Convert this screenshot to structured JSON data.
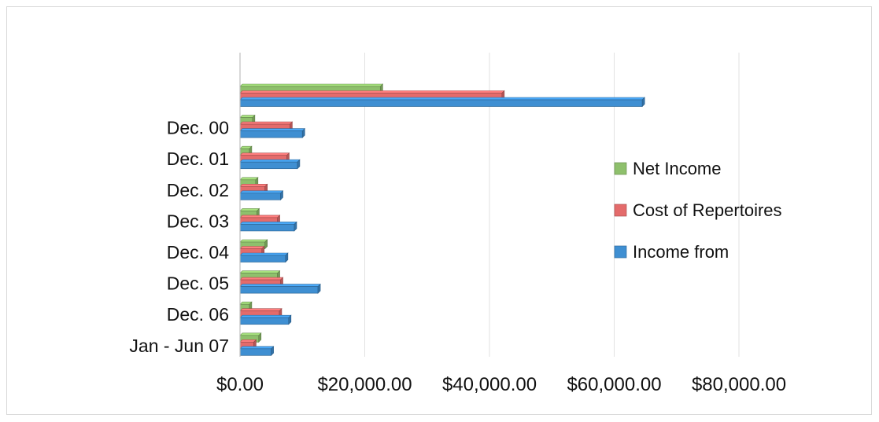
{
  "chart_data": {
    "type": "bar",
    "orientation": "horizontal",
    "style": "3d-clustered",
    "categories": [
      "",
      "Dec. 00",
      "Dec. 01",
      "Dec. 02",
      "Dec. 03",
      "Dec. 04",
      "Dec. 05",
      "Dec. 06",
      "Jan - Jun 07"
    ],
    "series": [
      {
        "name": "Net Income",
        "color": "#8ec06c",
        "values": [
          22500,
          2000,
          1500,
          2500,
          2700,
          4000,
          6000,
          1500,
          3000
        ]
      },
      {
        "name": "Cost of Repertoires",
        "color": "#e46b6b",
        "values": [
          42000,
          8000,
          7500,
          4000,
          6000,
          3500,
          6500,
          6300,
          2200
        ]
      },
      {
        "name": "Income from",
        "color": "#3f8fd2",
        "values": [
          64500,
          10000,
          9200,
          6500,
          8700,
          7300,
          12500,
          7800,
          5000
        ]
      }
    ],
    "xlim": [
      0,
      80000
    ],
    "xticks": [
      0,
      20000,
      40000,
      60000,
      80000
    ],
    "xtick_labels": [
      "$0.00",
      "$20,000.00",
      "$40,000.00",
      "$60,000.00",
      "$80,000.00"
    ],
    "grid": true,
    "legend_position": "right",
    "title": "",
    "xlabel": "",
    "ylabel": ""
  }
}
